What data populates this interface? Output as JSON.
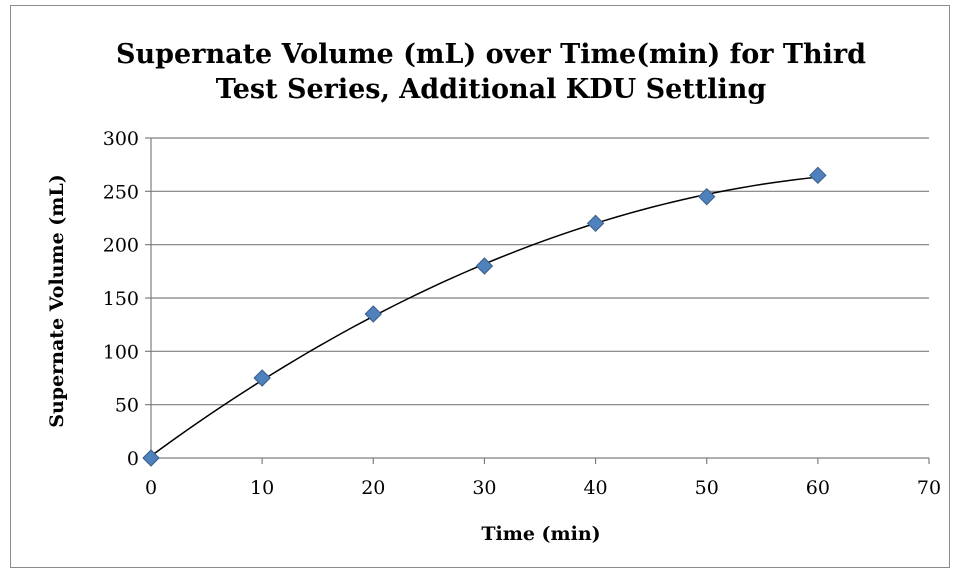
{
  "chart_data": {
    "type": "scatter",
    "title_lines": [
      "Supernate Volume (mL) over Time(min) for Third",
      "Test Series, Additional KDU Settling"
    ],
    "xlabel": "Time (min)",
    "ylabel": "Supernate Volume (mL)",
    "xlim": [
      0,
      70
    ],
    "ylim": [
      0,
      300
    ],
    "xticks": [
      0,
      10,
      20,
      30,
      40,
      50,
      60,
      70
    ],
    "yticks": [
      0,
      50,
      100,
      150,
      200,
      250,
      300
    ],
    "grid": "horizontal",
    "legend": "none",
    "series": [
      {
        "x": [
          0,
          10,
          20,
          30,
          40,
          50,
          60
        ],
        "y": [
          0,
          75,
          135,
          180,
          220,
          245,
          265
        ],
        "marker": "diamond",
        "color": "#4f81bd",
        "trendline": "polynomial"
      }
    ]
  }
}
